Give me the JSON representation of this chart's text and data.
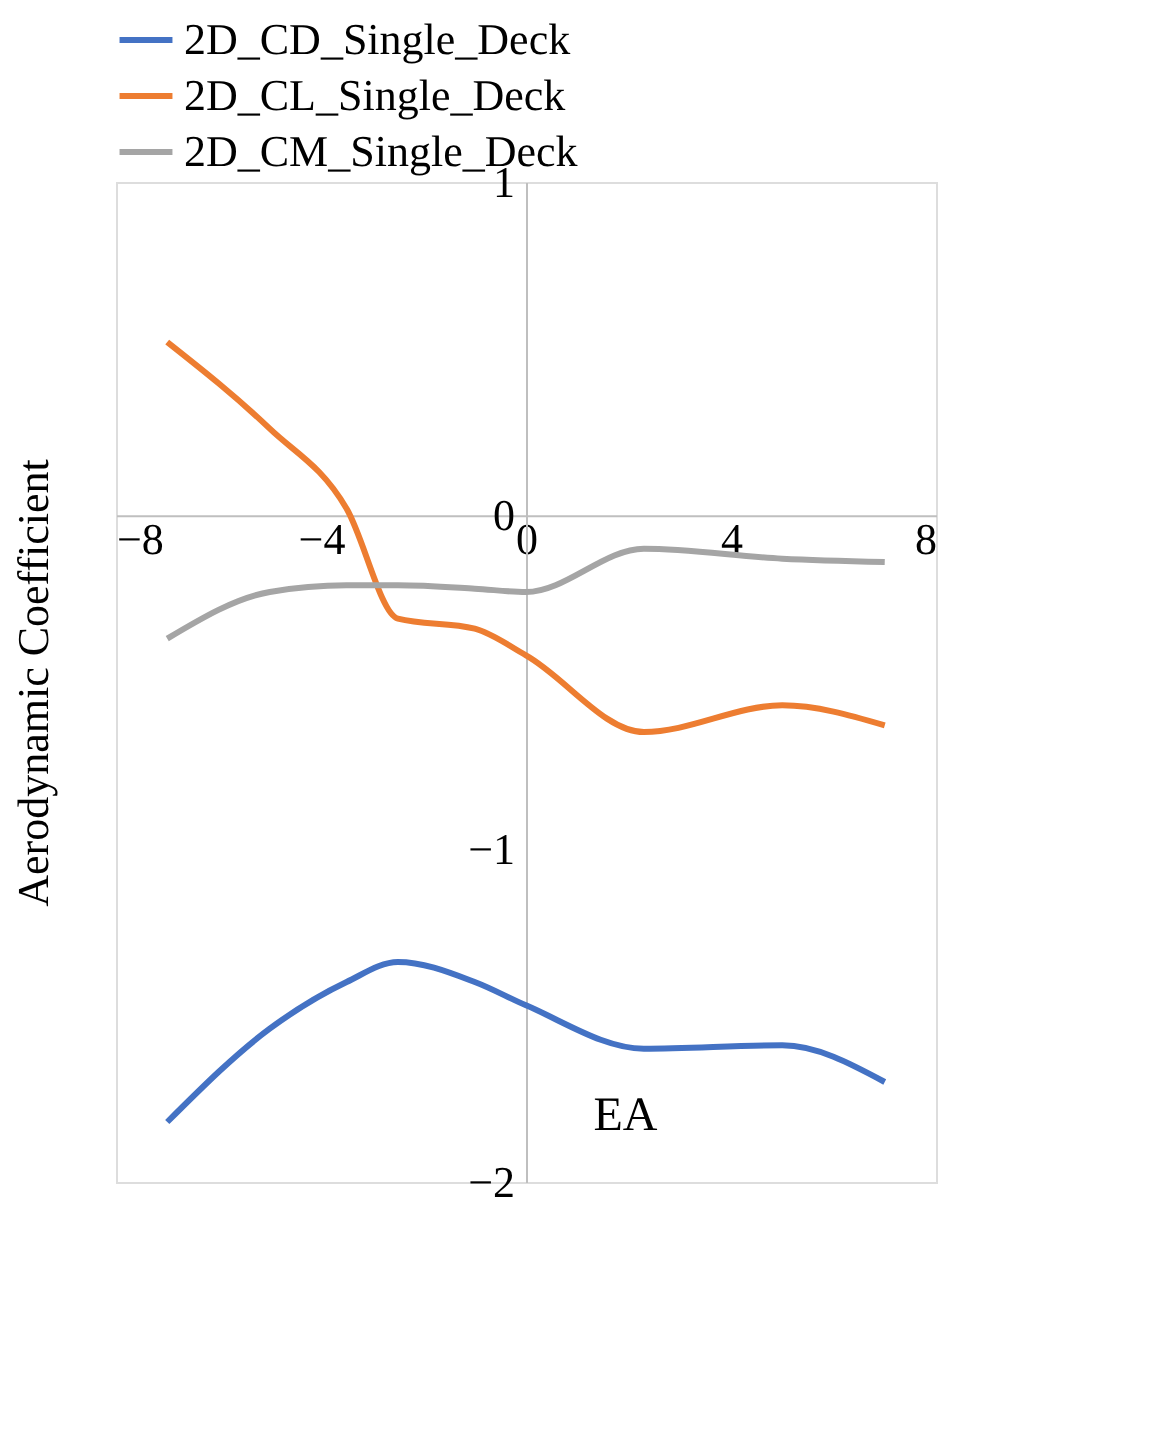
{
  "chart_data": {
    "type": "line",
    "xlabel": "EA",
    "ylabel": "Aerodynamic  Coefficient",
    "x": [
      -7,
      -5,
      -3.5,
      -2.5,
      -1,
      0,
      2.3,
      5,
      7
    ],
    "series": [
      {
        "name": "2D_CD_Single_Deck",
        "color": "#4472c4",
        "values": [
          -1.82,
          -1.54,
          -1.4,
          -1.34,
          -1.4,
          -1.47,
          -1.6,
          -1.59,
          -1.7
        ]
      },
      {
        "name": "2D_CL_Single_Deck",
        "color": "#ed7d31",
        "values": [
          0.52,
          0.26,
          0.02,
          -0.31,
          -0.34,
          -0.42,
          -0.65,
          -0.57,
          -0.63
        ]
      },
      {
        "name": "2D_CM_Single_Deck",
        "color": "#a5a5a5",
        "values": [
          -0.37,
          -0.23,
          -0.21,
          -0.21,
          -0.22,
          -0.23,
          -0.1,
          -0.13,
          -0.14
        ]
      }
    ],
    "xlim": [
      -8,
      8
    ],
    "xticks": [
      -8,
      -4,
      0,
      4,
      8
    ],
    "ylim": [
      -2,
      1
    ],
    "yticks": [
      -2,
      -1,
      0,
      1
    ],
    "grid": false,
    "legend": "top",
    "marker": "none",
    "line_style": "solid"
  }
}
